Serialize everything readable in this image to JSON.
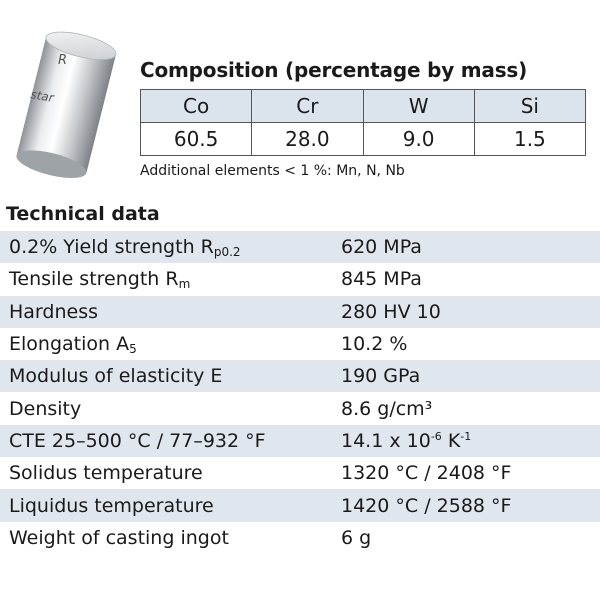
{
  "product_image": {
    "icon": "cylinder-ingot-icon",
    "logo_text_1": "R",
    "logo_text_2": "star"
  },
  "composition": {
    "title": "Composition (percentage by mass)",
    "headers": [
      "Co",
      "Cr",
      "W",
      "Si"
    ],
    "values": [
      "60.5",
      "28.0",
      "9.0",
      "1.5"
    ],
    "additional": "Additional elements < 1 %: Mn, N, Nb"
  },
  "technical": {
    "title": "Technical data",
    "rows": [
      {
        "label": "0.2% Yield strength R",
        "sub": "p0.2",
        "value": "620 MPa"
      },
      {
        "label": "Tensile strength R",
        "sub": "m",
        "value": "845 MPa"
      },
      {
        "label": "Hardness",
        "value": "280 HV 10"
      },
      {
        "label": "Elongation A",
        "sub": "5",
        "value": "10.2 %"
      },
      {
        "label": "Modulus of elasticity E",
        "value": "190 GPa"
      },
      {
        "label": "Density",
        "value": "8.6 g/cm³"
      },
      {
        "label": "CTE 25–500 °C / 77–932 °F",
        "value_a": "14.1 x 10",
        "value_sup1": "-6",
        "value_b": " K",
        "value_sup2": "-1"
      },
      {
        "label": "Solidus temperature",
        "value": "1320 °C / 2408 °F"
      },
      {
        "label": "Liquidus temperature",
        "value": "1420 °C / 2588 °F"
      },
      {
        "label": "Weight of casting ingot",
        "value": "6 g"
      }
    ]
  },
  "colors": {
    "row_shade": "#dfe6ee",
    "header_shade": "#dbe3ec"
  }
}
